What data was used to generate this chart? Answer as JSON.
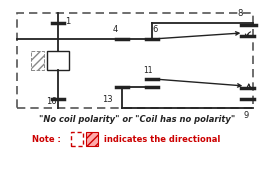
{
  "bg_color": "#ffffff",
  "border_color": "#222222",
  "dashed_color": "#555555",
  "red_color": "#cc0000",
  "figsize": [
    2.75,
    1.76
  ],
  "dpi": 100,
  "note_line1": "\"No coil polarity\" or \"Coil has no polarity\"",
  "note_line2_pre": "Note : ",
  "note_line2_post": " indicates the directional"
}
